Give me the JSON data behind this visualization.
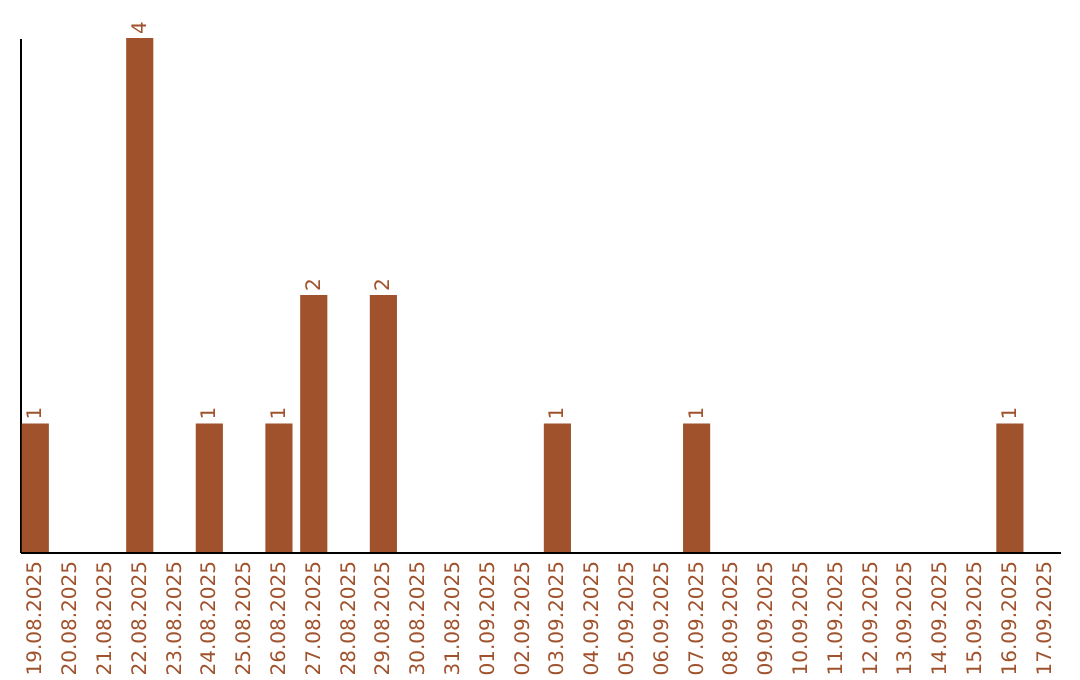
{
  "chart_data": {
    "type": "bar",
    "categories": [
      "19.08.2025",
      "20.08.2025",
      "21.08.2025",
      "22.08.2025",
      "23.08.2025",
      "24.08.2025",
      "25.08.2025",
      "26.08.2025",
      "27.08.2025",
      "28.08.2025",
      "29.08.2025",
      "30.08.2025",
      "31.08.2025",
      "01.09.2025",
      "02.09.2025",
      "03.09.2025",
      "04.09.2025",
      "05.09.2025",
      "06.09.2025",
      "07.09.2025",
      "08.09.2025",
      "09.09.2025",
      "10.09.2025",
      "11.09.2025",
      "12.09.2025",
      "13.09.2025",
      "14.09.2025",
      "15.09.2025",
      "16.09.2025",
      "17.09.2025"
    ],
    "values": [
      1,
      null,
      null,
      4,
      null,
      1,
      null,
      1,
      2,
      null,
      2,
      null,
      null,
      null,
      null,
      1,
      null,
      null,
      null,
      1,
      null,
      null,
      null,
      null,
      null,
      null,
      null,
      null,
      1,
      null
    ],
    "color": "#a0522d",
    "data_labels": true,
    "tick_labels": "x"
  }
}
